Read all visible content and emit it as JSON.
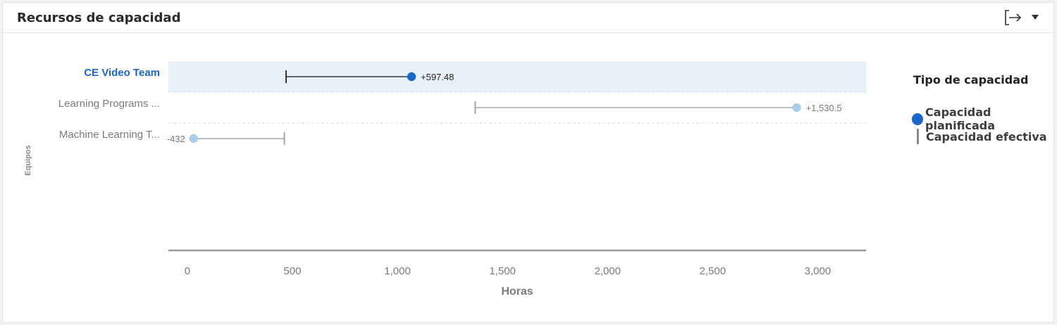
{
  "header": {
    "title": "Recursos de capacidad",
    "icons": [
      "export-icon",
      "chevron-down-icon"
    ]
  },
  "legend": {
    "title": "Tipo de capacidad",
    "items": [
      {
        "label": "Capacidad planificada",
        "marker": "dot",
        "color": "#1a66c9"
      },
      {
        "label": "Capacidad efectiva",
        "marker": "bar",
        "color": "#8a8a8a"
      }
    ]
  },
  "chart_data": {
    "type": "dumbbell",
    "orientation": "horizontal",
    "xlabel": "Horas",
    "ylabel": "Equipos",
    "xlim": [
      -90,
      3230
    ],
    "x_ticks": [
      0,
      500,
      1000,
      1500,
      2000,
      2500,
      3000
    ],
    "x_tick_labels": [
      "0",
      "500",
      "1,000",
      "1,500",
      "2,000",
      "2,500",
      "3,000"
    ],
    "categories": [
      "CE Video Team",
      "Learning Programs ...",
      "Machine Learning T..."
    ],
    "series": [
      {
        "name": "Capacidad efectiva",
        "values": [
          470,
          1370,
          462
        ]
      },
      {
        "name": "Capacidad planificada",
        "values": [
          1067,
          2900,
          30
        ]
      }
    ],
    "difference_labels": [
      "+597.48",
      "+1,530.5",
      "-432"
    ],
    "highlighted_category": "CE Video Team",
    "colors": {
      "highlight": "#1a66c9",
      "highlight_band": "#e8f0fa",
      "muted_dot": "#a9cdec",
      "muted_line": "#a6a6a6",
      "dark_line": "#333333",
      "axis": "#9a9a9a"
    },
    "grid": false,
    "legend_position": "right"
  }
}
